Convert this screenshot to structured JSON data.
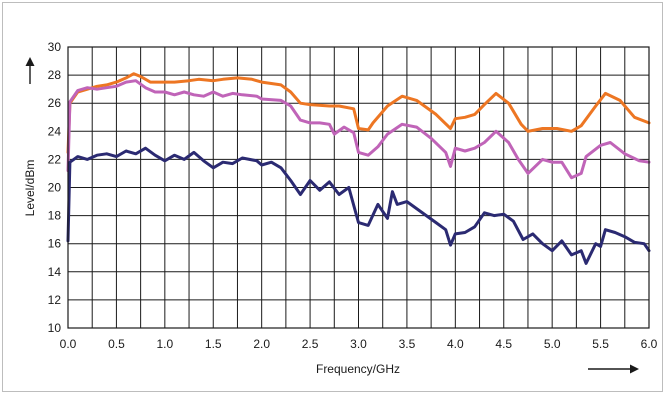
{
  "chart_data": {
    "type": "line",
    "xlabel": "Frequency/GHz",
    "ylabel": "Level/dBm",
    "xlim": [
      0,
      6
    ],
    "ylim": [
      10,
      30
    ],
    "x_ticks": [
      "0.0",
      "0.5",
      "1.0",
      "1.5",
      "2.0",
      "2.5",
      "3.0",
      "3.5",
      "4.0",
      "4.5",
      "5.0",
      "5.5",
      "6.0"
    ],
    "y_ticks": [
      "10",
      "12",
      "14",
      "16",
      "18",
      "20",
      "22",
      "24",
      "26",
      "28",
      "30"
    ],
    "x_grid_step": 0.25,
    "y_grid_step": 2,
    "grid": true,
    "series": [
      {
        "color": "#ed7623",
        "points": [
          [
            0,
            22.5
          ],
          [
            0.02,
            26.0
          ],
          [
            0.1,
            26.8
          ],
          [
            0.2,
            27.0
          ],
          [
            0.3,
            27.2
          ],
          [
            0.4,
            27.3
          ],
          [
            0.5,
            27.5
          ],
          [
            0.6,
            27.8
          ],
          [
            0.68,
            28.1
          ],
          [
            0.75,
            27.9
          ],
          [
            0.85,
            27.5
          ],
          [
            1.0,
            27.5
          ],
          [
            1.1,
            27.5
          ],
          [
            1.25,
            27.6
          ],
          [
            1.35,
            27.7
          ],
          [
            1.5,
            27.6
          ],
          [
            1.6,
            27.7
          ],
          [
            1.75,
            27.8
          ],
          [
            1.9,
            27.7
          ],
          [
            2.0,
            27.5
          ],
          [
            2.2,
            27.3
          ],
          [
            2.3,
            26.8
          ],
          [
            2.4,
            26.0
          ],
          [
            2.5,
            25.9
          ],
          [
            2.7,
            25.8
          ],
          [
            2.8,
            25.8
          ],
          [
            2.95,
            25.6
          ],
          [
            3.0,
            24.2
          ],
          [
            3.1,
            24.1
          ],
          [
            3.15,
            24.6
          ],
          [
            3.3,
            25.8
          ],
          [
            3.45,
            26.5
          ],
          [
            3.6,
            26.2
          ],
          [
            3.8,
            25.2
          ],
          [
            3.95,
            24.2
          ],
          [
            4.0,
            24.9
          ],
          [
            4.1,
            25.0
          ],
          [
            4.2,
            25.2
          ],
          [
            4.3,
            25.9
          ],
          [
            4.42,
            26.7
          ],
          [
            4.55,
            26.0
          ],
          [
            4.68,
            24.5
          ],
          [
            4.75,
            24.0
          ],
          [
            4.9,
            24.2
          ],
          [
            5.05,
            24.2
          ],
          [
            5.2,
            24.0
          ],
          [
            5.3,
            24.4
          ],
          [
            5.45,
            25.8
          ],
          [
            5.55,
            26.7
          ],
          [
            5.7,
            26.2
          ],
          [
            5.85,
            25.0
          ],
          [
            6.0,
            24.6
          ]
        ]
      },
      {
        "color": "#c064b8",
        "points": [
          [
            0,
            21.2
          ],
          [
            0.02,
            26.1
          ],
          [
            0.1,
            26.9
          ],
          [
            0.2,
            27.1
          ],
          [
            0.3,
            27.0
          ],
          [
            0.4,
            27.1
          ],
          [
            0.5,
            27.2
          ],
          [
            0.6,
            27.5
          ],
          [
            0.7,
            27.6
          ],
          [
            0.8,
            27.1
          ],
          [
            0.9,
            26.8
          ],
          [
            1.0,
            26.8
          ],
          [
            1.1,
            26.6
          ],
          [
            1.2,
            26.8
          ],
          [
            1.3,
            26.6
          ],
          [
            1.4,
            26.5
          ],
          [
            1.5,
            26.8
          ],
          [
            1.6,
            26.5
          ],
          [
            1.7,
            26.7
          ],
          [
            1.8,
            26.6
          ],
          [
            1.95,
            26.5
          ],
          [
            2.0,
            26.3
          ],
          [
            2.2,
            26.2
          ],
          [
            2.3,
            25.8
          ],
          [
            2.4,
            24.8
          ],
          [
            2.5,
            24.6
          ],
          [
            2.6,
            24.6
          ],
          [
            2.7,
            24.5
          ],
          [
            2.75,
            23.8
          ],
          [
            2.85,
            24.3
          ],
          [
            2.95,
            23.9
          ],
          [
            3.0,
            22.5
          ],
          [
            3.1,
            22.3
          ],
          [
            3.2,
            22.9
          ],
          [
            3.3,
            23.8
          ],
          [
            3.45,
            24.5
          ],
          [
            3.6,
            24.3
          ],
          [
            3.75,
            23.5
          ],
          [
            3.9,
            22.5
          ],
          [
            3.95,
            21.5
          ],
          [
            4.0,
            22.8
          ],
          [
            4.1,
            22.6
          ],
          [
            4.2,
            22.8
          ],
          [
            4.3,
            23.2
          ],
          [
            4.42,
            24.0
          ],
          [
            4.55,
            23.2
          ],
          [
            4.65,
            22.0
          ],
          [
            4.75,
            21.0
          ],
          [
            4.9,
            22.0
          ],
          [
            5.0,
            21.8
          ],
          [
            5.1,
            21.8
          ],
          [
            5.2,
            20.7
          ],
          [
            5.3,
            21.0
          ],
          [
            5.35,
            22.2
          ],
          [
            5.5,
            23.0
          ],
          [
            5.6,
            23.2
          ],
          [
            5.75,
            22.4
          ],
          [
            5.9,
            21.9
          ],
          [
            6.0,
            21.8
          ]
        ]
      },
      {
        "color": "#2b2a72",
        "points": [
          [
            0,
            16.2
          ],
          [
            0.02,
            21.8
          ],
          [
            0.1,
            22.2
          ],
          [
            0.2,
            22.0
          ],
          [
            0.3,
            22.3
          ],
          [
            0.4,
            22.4
          ],
          [
            0.5,
            22.2
          ],
          [
            0.6,
            22.6
          ],
          [
            0.7,
            22.4
          ],
          [
            0.8,
            22.8
          ],
          [
            0.9,
            22.3
          ],
          [
            1.0,
            21.9
          ],
          [
            1.1,
            22.3
          ],
          [
            1.2,
            22.0
          ],
          [
            1.3,
            22.5
          ],
          [
            1.4,
            21.9
          ],
          [
            1.5,
            21.4
          ],
          [
            1.6,
            21.8
          ],
          [
            1.7,
            21.7
          ],
          [
            1.8,
            22.1
          ],
          [
            1.95,
            21.9
          ],
          [
            2.0,
            21.6
          ],
          [
            2.1,
            21.8
          ],
          [
            2.2,
            21.4
          ],
          [
            2.3,
            20.5
          ],
          [
            2.4,
            19.5
          ],
          [
            2.5,
            20.5
          ],
          [
            2.6,
            19.8
          ],
          [
            2.7,
            20.4
          ],
          [
            2.8,
            19.5
          ],
          [
            2.9,
            20.0
          ],
          [
            3.0,
            17.5
          ],
          [
            3.1,
            17.3
          ],
          [
            3.2,
            18.8
          ],
          [
            3.3,
            17.8
          ],
          [
            3.35,
            19.7
          ],
          [
            3.4,
            18.8
          ],
          [
            3.5,
            19.0
          ],
          [
            3.6,
            18.5
          ],
          [
            3.7,
            18.0
          ],
          [
            3.8,
            17.5
          ],
          [
            3.9,
            17.0
          ],
          [
            3.95,
            15.9
          ],
          [
            4.0,
            16.7
          ],
          [
            4.1,
            16.8
          ],
          [
            4.2,
            17.2
          ],
          [
            4.3,
            18.2
          ],
          [
            4.4,
            18.0
          ],
          [
            4.5,
            18.1
          ],
          [
            4.6,
            17.6
          ],
          [
            4.7,
            16.3
          ],
          [
            4.8,
            16.7
          ],
          [
            4.9,
            16.0
          ],
          [
            5.0,
            15.5
          ],
          [
            5.1,
            16.2
          ],
          [
            5.2,
            15.2
          ],
          [
            5.3,
            15.5
          ],
          [
            5.35,
            14.6
          ],
          [
            5.45,
            16.0
          ],
          [
            5.5,
            15.8
          ],
          [
            5.55,
            17.0
          ],
          [
            5.65,
            16.8
          ],
          [
            5.75,
            16.5
          ],
          [
            5.85,
            16.1
          ],
          [
            5.95,
            16.0
          ],
          [
            6.0,
            15.5
          ]
        ]
      }
    ]
  }
}
